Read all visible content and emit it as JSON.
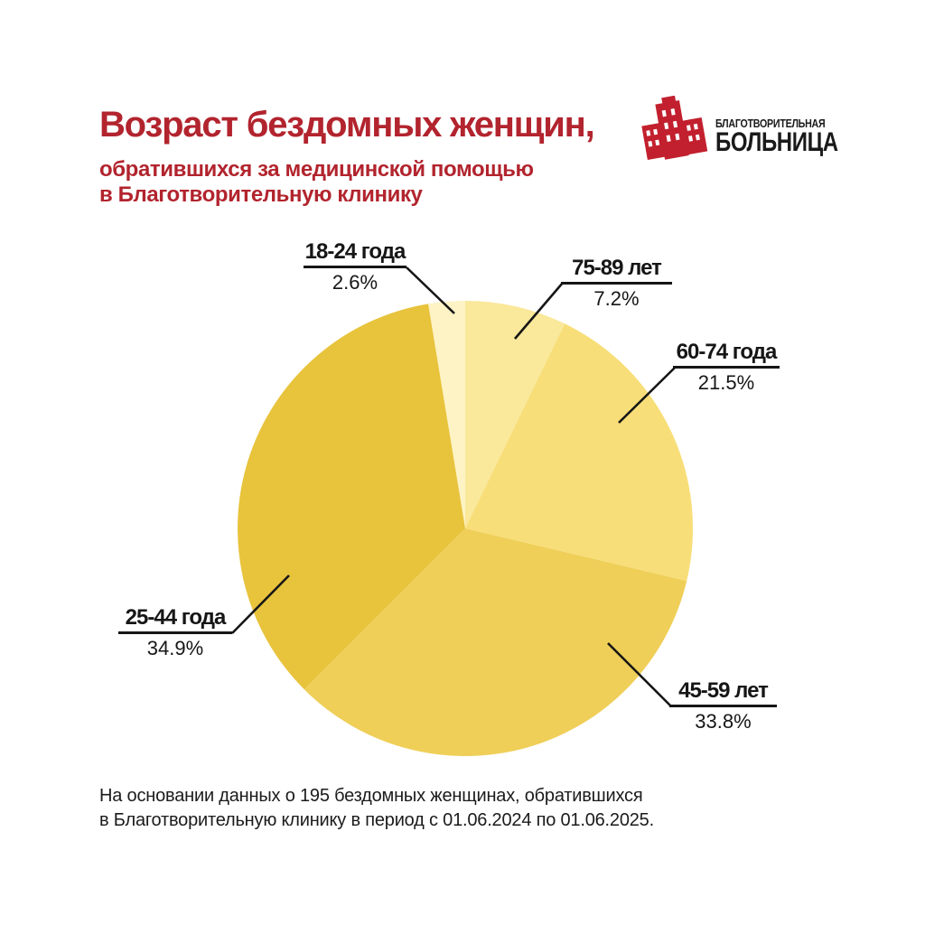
{
  "header": {
    "title": "Возраст бездомных женщин,",
    "subtitle_line1": "обратившихся за медицинской помощью",
    "subtitle_line2": "в Благотворительную клинику",
    "title_color": "#b2242e"
  },
  "brand": {
    "name_line1": "БЛАГОТВОРИТЕЛЬНАЯ",
    "name_line2": "БОЛЬНИЦА",
    "logo_color": "#c2202e",
    "text_color": "#1a1a1a"
  },
  "chart_data": {
    "type": "pie",
    "title": "Возраст бездомных женщин, обратившихся за медицинской помощью в Благотворительную клинику",
    "categories": [
      "18-24 года",
      "75-89 лет",
      "60-74 года",
      "45-59 лет",
      "25-44 года"
    ],
    "values": [
      2.6,
      7.2,
      21.5,
      33.8,
      34.9
    ],
    "unit": "%",
    "colors": [
      "#FDF3C5",
      "#FAE89B",
      "#F8DE78",
      "#EFCF58",
      "#E8C33C"
    ],
    "rotation_deg": -9.36,
    "legend_position": "callout-labels-with-leader-lines",
    "callouts": [
      {
        "range": "18-24 года",
        "pct": "2.6%"
      },
      {
        "range": "75-89 лет",
        "pct": "7.2%"
      },
      {
        "range": "60-74 года",
        "pct": "21.5%"
      },
      {
        "range": "45-59 лет",
        "pct": "33.8%"
      },
      {
        "range": "25-44 года",
        "pct": "34.9%"
      }
    ]
  },
  "footnote": {
    "line1": "На основании данных о 195 бездомных женщинах, обратившихся",
    "line2": "в Благотворительную клинику в период с 01.06.2024 по 01.06.2025."
  }
}
